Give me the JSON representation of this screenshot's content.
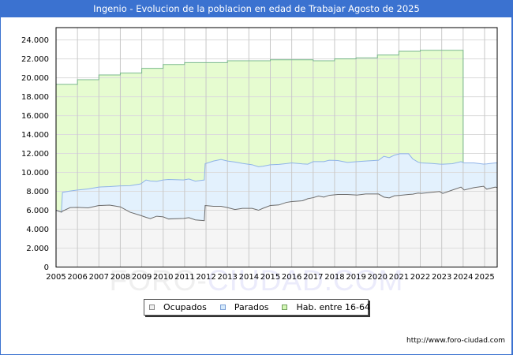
{
  "header": {
    "title": "Ingenio - Evolucion de la poblacion en edad de Trabajar Agosto de 2025"
  },
  "legend": {
    "items": [
      {
        "label": "Ocupados",
        "color": "#f0f0f0",
        "border": "#888888"
      },
      {
        "label": "Parados",
        "color": "#d6eafb",
        "border": "#7a9fd6"
      },
      {
        "label": "Hab. entre 16-64",
        "color": "#d4f7b4",
        "border": "#6f9e5e"
      }
    ]
  },
  "watermark": {
    "part1": "FORO-",
    "part2": "CIUDAD.COM"
  },
  "footer": {
    "url": "http://www.foro-ciudad.com"
  },
  "colors": {
    "title_bg": "#3b72d0",
    "hab_fill": "#e6fcd0",
    "hab_line": "#79b98b",
    "parados_fill": "#e3f1fd",
    "parados_line": "#8fb3e8",
    "ocupados_fill": "#f5f5f5",
    "ocupados_line": "#6b6b6b",
    "grid_vertical": "#c8c8c8",
    "grid_horizontal": "#dcdcdc",
    "axis": "#000000"
  },
  "chart_data": {
    "type": "area",
    "title": "Ingenio - Evolucion de la poblacion en edad de Trabajar Agosto de 2025",
    "xlabel": "",
    "ylabel": "",
    "stacked": true,
    "grid": true,
    "legend_position": "bottom",
    "xlim": [
      2005,
      2025.59
    ],
    "ylim": [
      0,
      25300
    ],
    "categories": [
      "2005",
      "2006",
      "2007",
      "2008",
      "2009",
      "2010",
      "2011",
      "2012",
      "2013",
      "2014",
      "2015",
      "2016",
      "2017",
      "2018",
      "2019",
      "2020",
      "2021",
      "2022",
      "2023",
      "2024",
      "2025"
    ],
    "y_ticks": [
      0,
      2000,
      4000,
      6000,
      8000,
      10000,
      12000,
      14000,
      16000,
      18000,
      20000,
      22000,
      24000
    ],
    "y_tick_labels": [
      "0",
      "2.000",
      "4.000",
      "6.000",
      "8.000",
      "10.000",
      "12.000",
      "14.000",
      "16.000",
      "18.000",
      "20.000",
      "22.000",
      "24.000"
    ],
    "x": [
      2005.0,
      2005.25,
      2005.3,
      2005.66,
      2006.0,
      2006.5,
      2007.0,
      2007.5,
      2008.0,
      2008.45,
      2008.95,
      2009.2,
      2009.4,
      2009.7,
      2010.0,
      2010.25,
      2010.95,
      2011.2,
      2011.5,
      2011.92,
      2011.96,
      2012.35,
      2012.7,
      2013.0,
      2013.35,
      2013.7,
      2014.15,
      2014.45,
      2014.65,
      2015.0,
      2015.4,
      2015.75,
      2016.0,
      2016.5,
      2016.75,
      2017.0,
      2017.25,
      2017.5,
      2017.75,
      2018.15,
      2018.6,
      2019.05,
      2019.45,
      2020.05,
      2020.3,
      2020.55,
      2020.8,
      2021.05,
      2021.45,
      2021.65,
      2021.9,
      2022.05,
      2022.5,
      2022.9,
      2023.05,
      2023.5,
      2023.9,
      2024.05,
      2024.5,
      2024.95,
      2025.1,
      2025.5,
      2025.58
    ],
    "series": [
      {
        "name": "Ocupados",
        "values": [
          6000,
          5800,
          5900,
          6280,
          6300,
          6250,
          6500,
          6540,
          6360,
          5800,
          5450,
          5250,
          5120,
          5370,
          5300,
          5080,
          5140,
          5220,
          4980,
          4900,
          6500,
          6420,
          6420,
          6280,
          6080,
          6200,
          6200,
          6000,
          6200,
          6500,
          6560,
          6830,
          6920,
          7000,
          7220,
          7330,
          7500,
          7390,
          7580,
          7670,
          7670,
          7610,
          7720,
          7720,
          7390,
          7310,
          7530,
          7580,
          7670,
          7700,
          7810,
          7780,
          7890,
          7980,
          7780,
          8140,
          8450,
          8140,
          8390,
          8530,
          8230,
          8450,
          8400
        ]
      },
      {
        "name": "Parados",
        "values": [
          0,
          0,
          1990,
          1750,
          1840,
          2000,
          1950,
          1960,
          2220,
          2800,
          3330,
          3950,
          3980,
          3690,
          3900,
          4170,
          4060,
          4080,
          4100,
          4300,
          4420,
          4780,
          4950,
          4920,
          5020,
          4750,
          4610,
          4600,
          4450,
          4310,
          4290,
          4100,
          4080,
          3900,
          3650,
          3810,
          3640,
          3750,
          3700,
          3580,
          3390,
          3530,
          3480,
          3560,
          4310,
          4250,
          4300,
          4390,
          4300,
          3720,
          3270,
          3220,
          3060,
          2900,
          3090,
          2780,
          2690,
          2860,
          2610,
          2350,
          2670,
          2550,
          2600
        ]
      },
      {
        "name": "Hab. entre 16-64",
        "step": true,
        "x": [
          2005,
          2006,
          2007,
          2008,
          2009,
          2010,
          2011,
          2012,
          2013,
          2014,
          2015,
          2016,
          2017,
          2018,
          2019,
          2020,
          2021,
          2022,
          2023
        ],
        "end_x": 2024,
        "values": [
          19300,
          19800,
          20300,
          20500,
          21000,
          21400,
          21600,
          21600,
          21800,
          21800,
          21900,
          21900,
          21800,
          22000,
          22100,
          22400,
          22800,
          22900,
          22900
        ]
      }
    ]
  }
}
